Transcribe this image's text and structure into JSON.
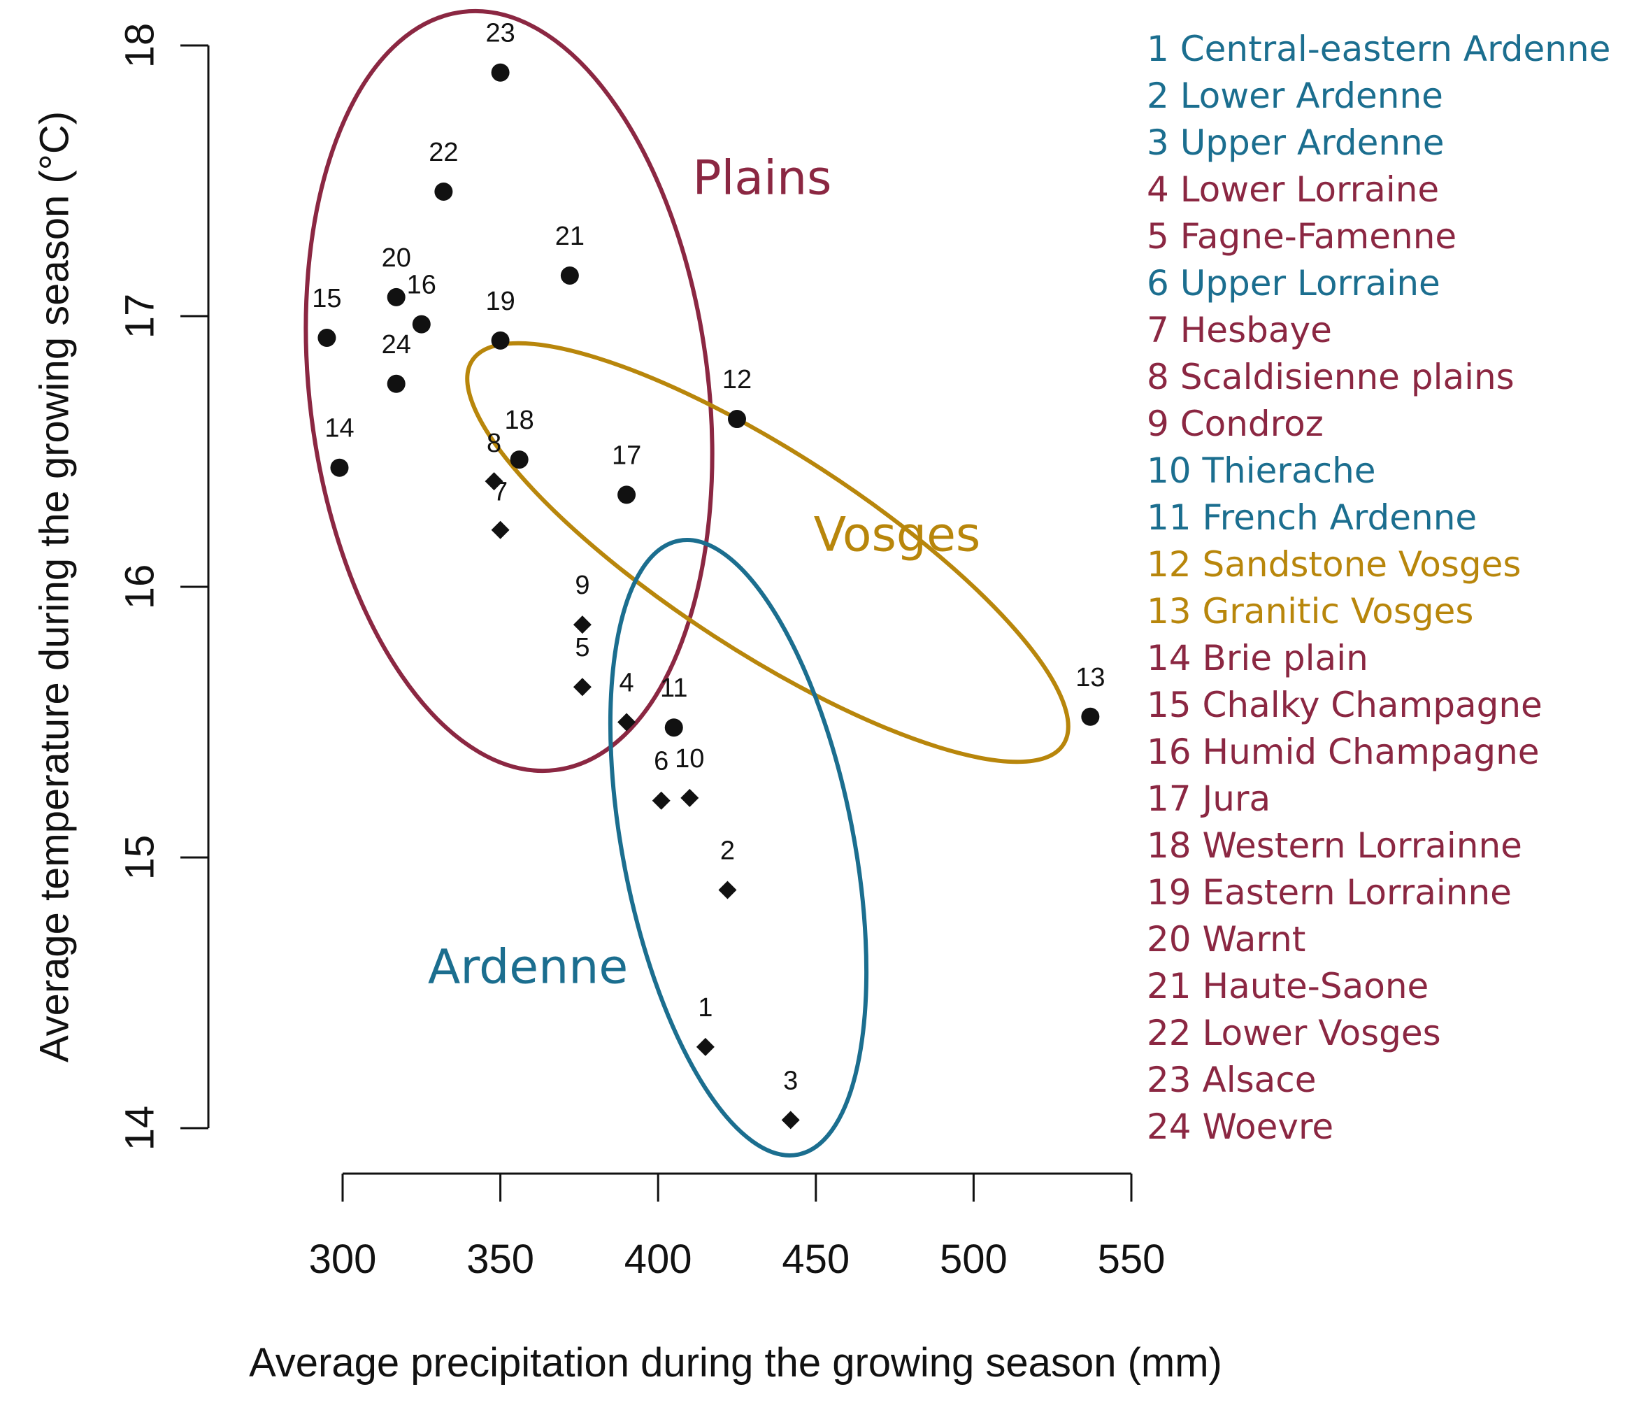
{
  "chart_data": {
    "type": "scatter",
    "xlabel": "Average precipitation during the growing season (mm)",
    "ylabel": "Average temperature during the growing season (°C)",
    "xlim": [
      300,
      550
    ],
    "ylim": [
      14,
      18
    ],
    "x_ticks": [
      300,
      350,
      400,
      450,
      500,
      550
    ],
    "y_ticks": [
      14,
      15,
      16,
      17,
      18
    ],
    "grid": false,
    "legend_position": "right",
    "colors": {
      "plains": "#8B2742",
      "ardenne": "#1B6E8F",
      "vosges": "#B8860B",
      "points": "#111111"
    },
    "groups": [
      {
        "name": "Plains",
        "color": "#8B2742"
      },
      {
        "name": "Vosges",
        "color": "#B8860B"
      },
      {
        "name": "Ardenne",
        "color": "#1B6E8F"
      }
    ],
    "points": [
      {
        "id": "1",
        "x": 415,
        "y": 14.3,
        "shape": "diamond"
      },
      {
        "id": "2",
        "x": 422,
        "y": 14.88,
        "shape": "diamond"
      },
      {
        "id": "3",
        "x": 442,
        "y": 14.03,
        "shape": "diamond"
      },
      {
        "id": "4",
        "x": 390,
        "y": 15.5,
        "shape": "diamond"
      },
      {
        "id": "5",
        "x": 376,
        "y": 15.63,
        "shape": "diamond"
      },
      {
        "id": "6",
        "x": 401,
        "y": 15.21,
        "shape": "diamond"
      },
      {
        "id": "7",
        "x": 350,
        "y": 16.21,
        "shape": "diamond"
      },
      {
        "id": "8",
        "x": 348,
        "y": 16.39,
        "shape": "diamond"
      },
      {
        "id": "9",
        "x": 376,
        "y": 15.86,
        "shape": "diamond"
      },
      {
        "id": "10",
        "x": 410,
        "y": 15.22,
        "shape": "diamond"
      },
      {
        "id": "11",
        "x": 405,
        "y": 15.48,
        "shape": "circle"
      },
      {
        "id": "12",
        "x": 425,
        "y": 16.62,
        "shape": "circle"
      },
      {
        "id": "13",
        "x": 537,
        "y": 15.52,
        "shape": "circle"
      },
      {
        "id": "14",
        "x": 299,
        "y": 16.44,
        "shape": "circle"
      },
      {
        "id": "15",
        "x": 295,
        "y": 16.92,
        "shape": "circle"
      },
      {
        "id": "16",
        "x": 325,
        "y": 16.97,
        "shape": "circle"
      },
      {
        "id": "17",
        "x": 390,
        "y": 16.34,
        "shape": "circle"
      },
      {
        "id": "18",
        "x": 356,
        "y": 16.47,
        "shape": "circle"
      },
      {
        "id": "19",
        "x": 350,
        "y": 16.91,
        "shape": "circle"
      },
      {
        "id": "20",
        "x": 317,
        "y": 17.07,
        "shape": "circle"
      },
      {
        "id": "21",
        "x": 372,
        "y": 17.15,
        "shape": "circle"
      },
      {
        "id": "22",
        "x": 332,
        "y": 17.46,
        "shape": "circle"
      },
      {
        "id": "23",
        "x": 350,
        "y": 17.9,
        "shape": "circle"
      },
      {
        "id": "24",
        "x": 317,
        "y": 16.75,
        "shape": "circle"
      }
    ],
    "legend": [
      {
        "label": "1 Central-eastern Ardenne",
        "group": "ardenne"
      },
      {
        "label": "2 Lower Ardenne",
        "group": "ardenne"
      },
      {
        "label": "3 Upper Ardenne",
        "group": "ardenne"
      },
      {
        "label": "4 Lower Lorraine",
        "group": "plains"
      },
      {
        "label": "5 Fagne-Famenne",
        "group": "plains"
      },
      {
        "label": "6 Upper Lorraine",
        "group": "ardenne"
      },
      {
        "label": "7 Hesbaye",
        "group": "plains"
      },
      {
        "label": "8 Scaldisienne plains",
        "group": "plains"
      },
      {
        "label": "9 Condroz",
        "group": "plains"
      },
      {
        "label": "10 Thierache",
        "group": "ardenne"
      },
      {
        "label": "11 French Ardenne",
        "group": "ardenne"
      },
      {
        "label": "12 Sandstone Vosges",
        "group": "vosges"
      },
      {
        "label": "13 Granitic Vosges",
        "group": "vosges"
      },
      {
        "label": "14 Brie plain",
        "group": "plains"
      },
      {
        "label": "15 Chalky Champagne",
        "group": "plains"
      },
      {
        "label": "16 Humid Champagne",
        "group": "plains"
      },
      {
        "label": "17 Jura",
        "group": "plains"
      },
      {
        "label": "18 Western Lorrainne",
        "group": "plains"
      },
      {
        "label": "19 Eastern Lorrainne",
        "group": "plains"
      },
      {
        "label": "20 Warnt",
        "group": "plains"
      },
      {
        "label": "21 Haute-Saone",
        "group": "plains"
      },
      {
        "label": "22 Lower Vosges",
        "group": "plains"
      },
      {
        "label": "23 Alsace",
        "group": "plains"
      },
      {
        "label": "24 Woevre",
        "group": "plains"
      }
    ]
  }
}
